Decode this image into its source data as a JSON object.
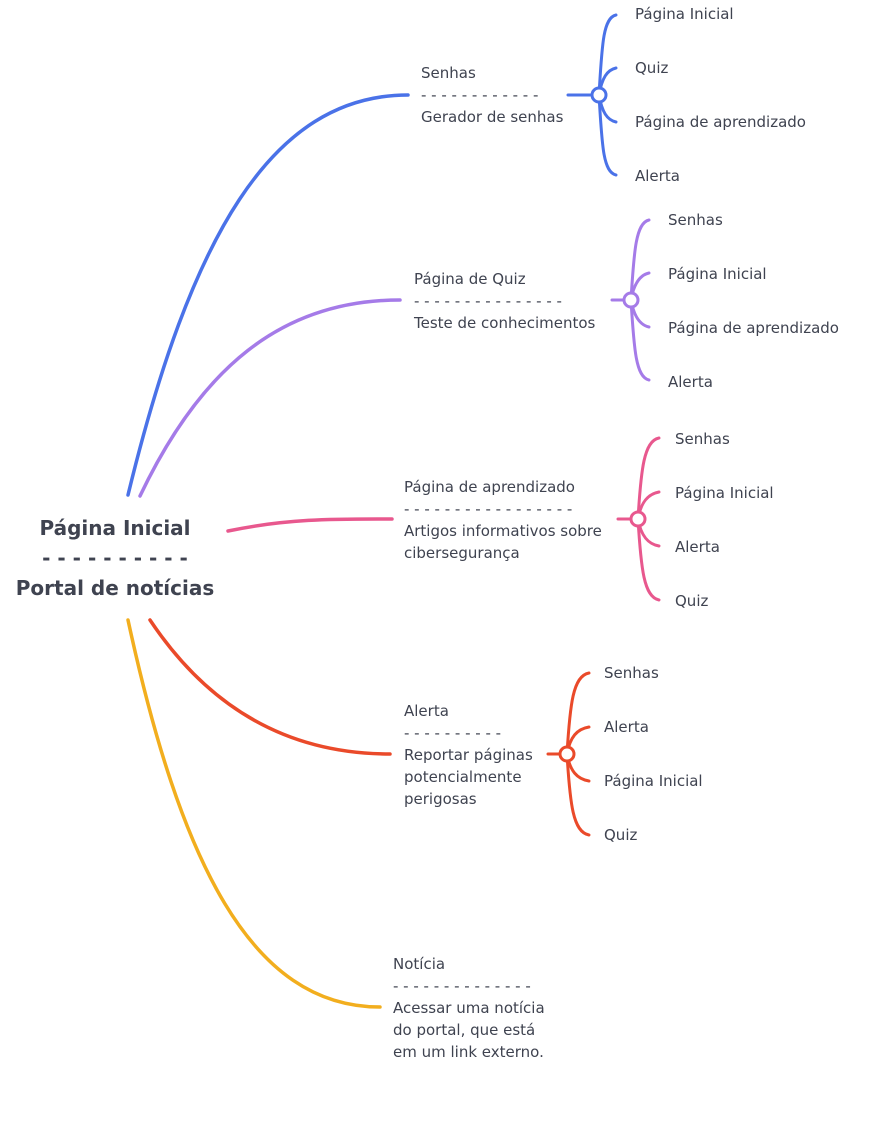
{
  "root": {
    "title": "Página Inicial",
    "separator": "- - - - - - - - - -",
    "subtitle": "Portal de notícias"
  },
  "colors": {
    "blue": "#4a72e8",
    "purple": "#a57be8",
    "pink": "#e8588e",
    "red": "#ea4a2a",
    "yellow": "#f2ae1e"
  },
  "branches": [
    {
      "id": "senhas",
      "title": "Senhas",
      "separator": "- - - - - - - - - - - -",
      "description": [
        "Gerador de senhas"
      ],
      "children": [
        "Página Inicial",
        "Quiz",
        "Página de aprendizado",
        "Alerta"
      ]
    },
    {
      "id": "quiz",
      "title": "Página de Quiz",
      "separator": "- - - - - - - - - - - - - - -",
      "description": [
        "Teste de conhecimentos"
      ],
      "children": [
        "Senhas",
        "Página Inicial",
        "Página de aprendizado",
        "Alerta"
      ]
    },
    {
      "id": "aprendizado",
      "title": "Página de aprendizado",
      "separator": "- - - - - - - - - - - - - - - - -",
      "description": [
        "Artigos informativos sobre",
        "cibersegurança"
      ],
      "children": [
        "Senhas",
        "Página Inicial",
        "Alerta",
        "Quiz"
      ]
    },
    {
      "id": "alerta",
      "title": "Alerta",
      "separator": "- - - - - - - - - -",
      "description": [
        "Reportar páginas",
        "potencialmente",
        "perigosas"
      ],
      "children": [
        "Senhas",
        "Alerta",
        "Página Inicial",
        "Quiz"
      ]
    },
    {
      "id": "noticia",
      "title": "Notícia",
      "separator": "- - - - - - - - - - - - - -",
      "description": [
        "Acessar uma notícia",
        "do portal, que está",
        "em um link externo."
      ],
      "children": []
    }
  ]
}
